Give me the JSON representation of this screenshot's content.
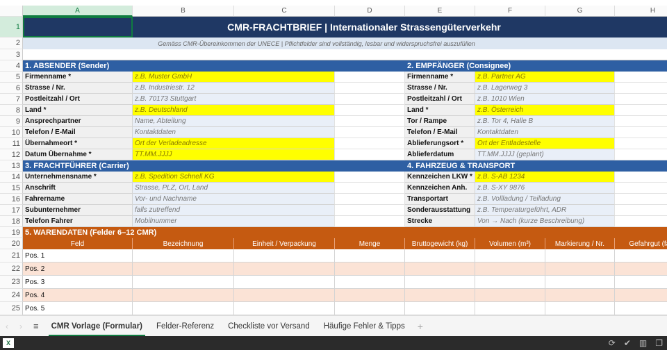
{
  "columns": [
    "A",
    "B",
    "C",
    "D",
    "E",
    "F",
    "G",
    "H"
  ],
  "title": "CMR-FRACHTBRIEF  |  Internationaler Strassengüterverkehr",
  "subtitle": "Gemäss CMR-Übereinkommen der UNECE  |  Pflichtfelder sind vollständig, lesbar und widerspruchsfrei auszufüllen",
  "colors": {
    "header": "#1f3864",
    "section": "#2e5fa3",
    "goods": "#c55a11",
    "required": "#ffff00",
    "optional": "#e9eff8",
    "alt_row": "#fbe3d6"
  },
  "sections": {
    "sender": {
      "title": "1. ABSENDER (Sender)",
      "rows": [
        {
          "label": "Firmenname *",
          "value": "z.B. Muster GmbH",
          "required": true
        },
        {
          "label": "Strasse / Nr.",
          "value": "z.B. Industriestr. 12",
          "required": false
        },
        {
          "label": "Postleitzahl / Ort",
          "value": "z.B. 70173 Stuttgart",
          "required": false
        },
        {
          "label": "Land *",
          "value": "z.B. Deutschland",
          "required": true
        },
        {
          "label": "Ansprechpartner",
          "value": "Name, Abteilung",
          "required": false
        },
        {
          "label": "Telefon / E-Mail",
          "value": "Kontaktdaten",
          "required": false
        },
        {
          "label": "Übernahmeort *",
          "value": "Ort der Verladeadresse",
          "required": true
        },
        {
          "label": "Datum Übernahme *",
          "value": "TT.MM.JJJJ",
          "required": true
        }
      ]
    },
    "consignee": {
      "title": "2. EMPFÄNGER (Consignee)",
      "rows": [
        {
          "label": "Firmenname *",
          "value": "z.B. Partner AG",
          "required": true
        },
        {
          "label": "Strasse / Nr.",
          "value": "z.B. Lagerweg 3",
          "required": false
        },
        {
          "label": "Postleitzahl / Ort",
          "value": "z.B. 1010 Wien",
          "required": false
        },
        {
          "label": "Land *",
          "value": "z.B. Österreich",
          "required": true
        },
        {
          "label": "Tor / Rampe",
          "value": "z.B. Tor 4, Halle B",
          "required": false
        },
        {
          "label": "Telefon / E-Mail",
          "value": "Kontaktdaten",
          "required": false
        },
        {
          "label": "Ablieferungsort *",
          "value": "Ort der Entladestelle",
          "required": true
        },
        {
          "label": "Ablieferdatum",
          "value": "TT.MM.JJJJ (geplant)",
          "required": false
        }
      ]
    },
    "carrier": {
      "title": "3. FRACHTFÜHRER (Carrier)",
      "rows": [
        {
          "label": "Unternehmensname *",
          "value": "z.B. Spedition Schnell KG",
          "required": true
        },
        {
          "label": "Anschrift",
          "value": "Strasse, PLZ, Ort, Land",
          "required": false
        },
        {
          "label": "Fahrername",
          "value": "Vor- und Nachname",
          "required": false
        },
        {
          "label": "Subunternehmer",
          "value": "falls zutreffend",
          "required": false
        },
        {
          "label": "Telefon Fahrer",
          "value": "Mobilnummer",
          "required": false
        }
      ]
    },
    "vehicle": {
      "title": "4. FAHRZEUG & TRANSPORT",
      "rows": [
        {
          "label": "Kennzeichen LKW *",
          "value": "z.B. S-AB 1234",
          "required": true
        },
        {
          "label": "Kennzeichen Anh.",
          "value": "z.B. S-XY 9876",
          "required": false
        },
        {
          "label": "Transportart",
          "value": "z.B. Vollladung / Teilladung",
          "required": false
        },
        {
          "label": "Sonderausstattung",
          "value": "z.B. Temperaturgeführt, ADR",
          "required": false
        },
        {
          "label": "Strecke",
          "value": "Von → Nach (kurze Beschreibung)",
          "required": false
        }
      ]
    },
    "goods": {
      "title": "5. WARENDATEN (Felder 6–12 CMR)",
      "headers": [
        "Feld",
        "Bezeichnung",
        "Einheit / Verpackung",
        "Menge",
        "Bruttogewicht (kg)",
        "Volumen (m³)",
        "Markierung / Nr.",
        "Gefahrgut (falls"
      ],
      "rows": [
        "Pos. 1",
        "Pos. 2",
        "Pos. 3",
        "Pos. 4",
        "Pos. 5"
      ]
    }
  },
  "sheet_tabs": [
    {
      "label": "CMR Vorlage (Formular)",
      "active": true
    },
    {
      "label": "Felder-Referenz",
      "active": false
    },
    {
      "label": "Checkliste vor Versand",
      "active": false
    },
    {
      "label": "Häufige Fehler & Tipps",
      "active": false
    }
  ],
  "add_sheet": "+"
}
